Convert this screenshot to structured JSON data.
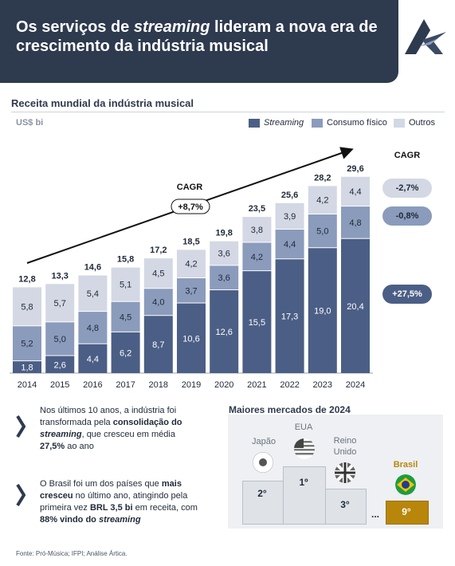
{
  "header": {
    "title_part1": "Os serviços de ",
    "title_italic": "streaming",
    "title_part2": " lideram a nova era de crescimento da indústria musical"
  },
  "section": {
    "title": "Receita mundial da indústria musical",
    "unit": "US$ bi"
  },
  "legend": [
    {
      "label": "Streaming",
      "color": "#4b5e85"
    },
    {
      "label": "Consumo físico",
      "color": "#8b9bbc"
    },
    {
      "label": "Outros",
      "color": "#d3d8e4"
    }
  ],
  "chart_data": {
    "type": "bar",
    "stacked": true,
    "categories": [
      "2014",
      "2015",
      "2016",
      "2017",
      "2018",
      "2019",
      "2020",
      "2021",
      "2022",
      "2023",
      "2024"
    ],
    "series": [
      {
        "name": "Streaming",
        "values": [
          1.8,
          2.6,
          4.4,
          6.2,
          8.7,
          10.6,
          12.6,
          15.5,
          17.3,
          19.0,
          20.4
        ]
      },
      {
        "name": "Consumo físico",
        "values": [
          5.2,
          5.0,
          4.8,
          4.5,
          4.0,
          3.7,
          3.6,
          4.2,
          4.4,
          5.0,
          4.8
        ]
      },
      {
        "name": "Outros",
        "values": [
          5.8,
          5.7,
          5.4,
          5.1,
          4.5,
          4.2,
          3.6,
          3.8,
          3.9,
          4.2,
          4.4
        ]
      }
    ],
    "segment_labels": [
      [
        "1,8",
        "2,6",
        "4,4",
        "6,2",
        "8,7",
        "10,6",
        "12,6",
        "15,5",
        "17,3",
        "19,0",
        "20,4"
      ],
      [
        "5,2",
        "5,0",
        "4,8",
        "4,5",
        "4,0",
        "3,7",
        "3,6",
        "4,2",
        "4,4",
        "5,0",
        "4,8"
      ],
      [
        "5,8",
        "5,7",
        "5,4",
        "5,1",
        "4,5",
        "4,2",
        "3,6",
        "3,8",
        "3,9",
        "4,2",
        "4,4"
      ]
    ],
    "totals": [
      "12,8",
      "13,3",
      "14,6",
      "15,8",
      "17,2",
      "18,5",
      "19,8",
      "23,5",
      "25,6",
      "28,2",
      "29,6"
    ],
    "ylim": [
      0,
      30
    ],
    "trend_cagr_label": "CAGR",
    "trend_cagr_value": "+8,7%",
    "side_cagr_title": "CAGR",
    "side_cagr": [
      {
        "series": "Outros",
        "value": "-2,7%"
      },
      {
        "series": "Consumo físico",
        "value": "-0,8%"
      },
      {
        "series": "Streaming",
        "value": "+27,5%"
      }
    ]
  },
  "insights": [
    {
      "parts": [
        "Nos últimos 10 anos, a indústria foi transformada pela ",
        "consolidação do ",
        "streaming",
        ", que cresceu em média ",
        "27,5%",
        " ao ano"
      ]
    },
    {
      "parts": [
        "O Brasil foi um dos países que ",
        "mais cresceu",
        " no último ano, atingindo pela primeira vez ",
        "BRL 3,5 bi",
        " em receita, com ",
        "88% vindo do ",
        "streaming"
      ]
    }
  ],
  "markets": {
    "title": "Maiores mercados de 2024",
    "countries": [
      {
        "name": "Japão",
        "rank": "2°"
      },
      {
        "name": "EUA",
        "rank": "1º"
      },
      {
        "name": "Reino Unido",
        "rank": "3°"
      },
      {
        "name": "Brasil",
        "rank": "9°"
      }
    ],
    "ellipsis": "..."
  },
  "footnote": "Fonte: Pró-Música; IFPI; Análise Ártica."
}
